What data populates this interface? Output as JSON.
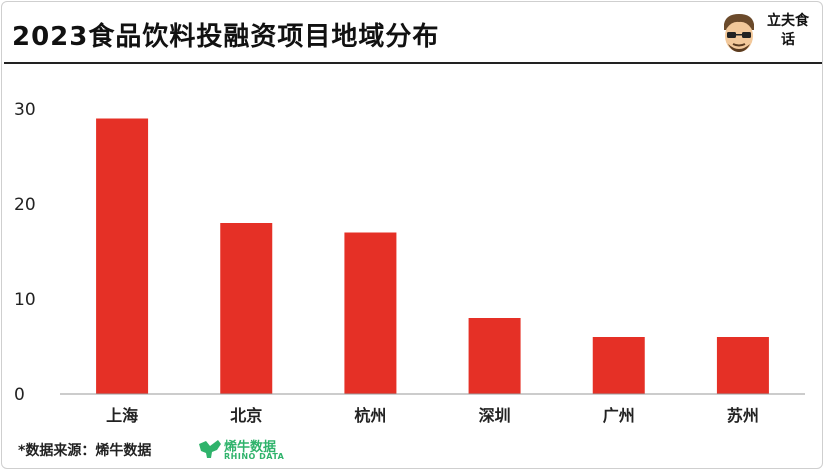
{
  "header": {
    "title": "2023食品饮料投融资项目地域分布",
    "brand_label": "立夫食话"
  },
  "footer": {
    "source": "*数据来源：烯牛数据",
    "logo_cn": "烯牛数据",
    "logo_en": "RHINO DATA"
  },
  "colors": {
    "bar": "#e53026",
    "axis": "#999999",
    "accent_green": "#2fb36b"
  },
  "chart_data": {
    "type": "bar",
    "categories": [
      "上海",
      "北京",
      "杭州",
      "深圳",
      "广州",
      "苏州"
    ],
    "values": [
      29,
      18,
      17,
      8,
      6,
      6
    ],
    "title": "2023食品饮料投融资项目地域分布",
    "xlabel": "",
    "ylabel": "",
    "ylim": [
      0,
      30
    ],
    "yticks": [
      0,
      10,
      20,
      30
    ],
    "grid": false,
    "legend": "none"
  }
}
